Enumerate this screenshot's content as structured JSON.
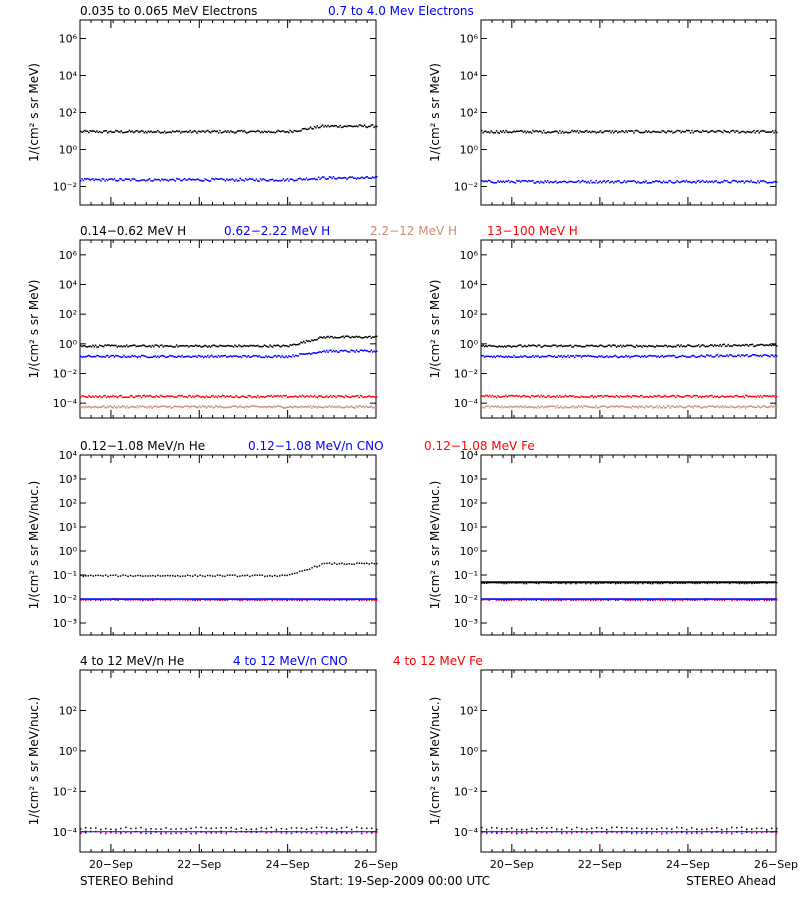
{
  "footer": {
    "left": "STEREO Behind",
    "center": "Start: 19-Sep-2009 00:00 UTC",
    "right": "STEREO Ahead"
  },
  "colors": {
    "black": "#000000",
    "blue": "#0000ff",
    "salmon": "#cd8c73",
    "red": "#ff0000"
  },
  "chart_data": [
    {
      "type": "scatter",
      "row": 1,
      "ylabel": "1/(cm² s sr MeV)",
      "ylim_log10": [
        -3,
        7
      ],
      "y_ticks": [
        "10⁻²",
        "10⁰",
        "10²",
        "10⁴",
        "10⁶"
      ],
      "x_ticks": [
        "20−Sep",
        "22−Sep",
        "24−Sep",
        "26−Sep"
      ],
      "series": [
        {
          "name": "0.035 to 0.065 MeV Electrons",
          "color": "#000000"
        },
        {
          "name": "0.7 to 4.0 Mev Electrons",
          "color": "#0000ff"
        }
      ],
      "panels": [
        {
          "spacecraft": "STEREO Behind",
          "levels_log10": [
            1.0,
            -1.6
          ],
          "rise": [
            0.3,
            0.1
          ]
        },
        {
          "spacecraft": "STEREO Ahead",
          "levels_log10": [
            1.0,
            -1.7
          ],
          "rise": [
            0.0,
            0.0
          ]
        }
      ]
    },
    {
      "type": "scatter",
      "row": 2,
      "ylabel": "1/(cm² s sr MeV)",
      "ylim_log10": [
        -5,
        7
      ],
      "y_ticks": [
        "10⁻⁴",
        "10⁻²",
        "10⁰",
        "10²",
        "10⁴",
        "10⁶"
      ],
      "x_ticks": [
        "20−Sep",
        "22−Sep",
        "24−Sep",
        "26−Sep"
      ],
      "series": [
        {
          "name": "0.14−0.62 MeV H",
          "color": "#000000"
        },
        {
          "name": "0.62−2.22 MeV H",
          "color": "#0000ff"
        },
        {
          "name": "2.2−12 MeV H",
          "color": "#cd8c73"
        },
        {
          "name": "13−100 MeV H",
          "color": "#ff0000"
        }
      ],
      "panels": [
        {
          "spacecraft": "STEREO Behind",
          "levels_log10": [
            -0.1,
            -0.8,
            -4.2,
            -3.5
          ],
          "rise": [
            0.6,
            0.35,
            0.0,
            0.0
          ]
        },
        {
          "spacecraft": "STEREO Ahead",
          "levels_log10": [
            -0.1,
            -0.8,
            -4.2,
            -3.5
          ],
          "rise": [
            0.05,
            0.05,
            0.0,
            0.0
          ]
        }
      ]
    },
    {
      "type": "scatter",
      "row": 3,
      "ylabel": "1/(cm² s sr MeV/nuc.)",
      "ylim_log10": [
        -3.5,
        4
      ],
      "y_ticks": [
        "10⁻³",
        "10⁻²",
        "10⁻¹",
        "10⁰",
        "10¹",
        "10²",
        "10³",
        "10⁴"
      ],
      "x_ticks": [
        "20−Sep",
        "22−Sep",
        "24−Sep",
        "26−Sep"
      ],
      "series": [
        {
          "name": "0.12−1.08 MeV/n He",
          "color": "#000000"
        },
        {
          "name": "0.12−1.08 MeV/n CNO",
          "color": "#0000ff"
        },
        {
          "name": "0.12−1.08 MeV Fe",
          "color": "#ff0000"
        }
      ],
      "panels": [
        {
          "spacecraft": "STEREO Behind",
          "levels_log10": [
            -1.0,
            -2.0,
            -2.0
          ],
          "rise": [
            0.5,
            0.0,
            0.0
          ]
        },
        {
          "spacecraft": "STEREO Ahead",
          "levels_log10": [
            -1.3,
            -2.0,
            -2.0
          ],
          "rise": [
            0.0,
            0.0,
            0.0
          ]
        }
      ]
    },
    {
      "type": "scatter",
      "row": 4,
      "ylabel": "1/(cm² s sr MeV/nuc.)",
      "ylim_log10": [
        -5,
        4
      ],
      "y_ticks": [
        "10⁻⁴",
        "10⁻²",
        "10⁰",
        "10²"
      ],
      "x_ticks": [
        "20−Sep",
        "22−Sep",
        "24−Sep",
        "26−Sep"
      ],
      "series": [
        {
          "name": "4 to 12 MeV/n He",
          "color": "#000000"
        },
        {
          "name": "4 to 12 MeV/n CNO",
          "color": "#0000ff"
        },
        {
          "name": "4 to 12 MeV Fe",
          "color": "#ff0000"
        }
      ],
      "panels": [
        {
          "spacecraft": "STEREO Behind",
          "levels_log10": [
            -3.8,
            -4.0,
            -4.0
          ],
          "rise": [
            0.0,
            0.0,
            0.0
          ]
        },
        {
          "spacecraft": "STEREO Ahead",
          "levels_log10": [
            -3.8,
            -4.0,
            -4.0
          ],
          "rise": [
            0.0,
            0.0,
            0.0
          ]
        }
      ]
    }
  ]
}
